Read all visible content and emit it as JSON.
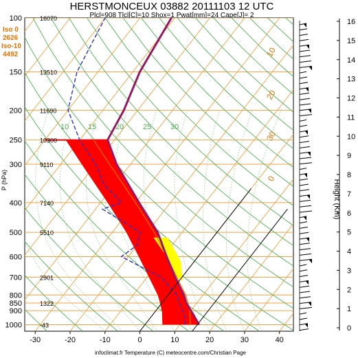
{
  "title": "HERSTMONCEUX 03882 20111103 12 UTC",
  "subtitle": "Plcl=908 Tlcl[C]=10 Shox=1 Pwat[mm]=24 Cape[J]= 2",
  "iso_labels": [
    "Iso 0",
    "2626",
    "Iso-10",
    "4492"
  ],
  "credit": "infoclimat.fr Temperature (C) meteocentre.com/Christian Page",
  "y_axis_label": "P (hPa)",
  "right_axis_label": "Height (Km)",
  "colors": {
    "isobar": "#f0a040",
    "dry_adiabat": "#4caf50",
    "temperature_line": "#3030c0",
    "profile_red": "#ff0000",
    "cape_fill": "#ffff00",
    "parcel": "#e87000",
    "iso_text": "#e87000",
    "mixing_ratio_text": "#e87000"
  },
  "chart_data": {
    "type": "line",
    "title": "HERSTMONCEUX 03882 20111103 12 UTC",
    "subtitle": "Plcl=908 Tlcl[C]=10 Shox=1 Pwat[mm]=24 Cape[J]= 2",
    "xlabel": "Temperature (C)",
    "ylabel": "P (hPa)",
    "xlim": [
      -35,
      45
    ],
    "pressure_levels": [
      1000,
      900,
      850,
      800,
      700,
      600,
      500,
      400,
      300,
      250,
      200,
      150,
      100
    ],
    "x_ticks": [
      -30,
      -20,
      -10,
      0,
      10,
      20,
      30,
      40
    ],
    "height_geopotential_labels": [
      {
        "p": 100,
        "text": "16070"
      },
      {
        "p": 150,
        "text": "13510"
      },
      {
        "p": 200,
        "text": "11690"
      },
      {
        "p": 250,
        "text": "10300"
      },
      {
        "p": 300,
        "text": "9110"
      },
      {
        "p": 400,
        "text": "7140"
      },
      {
        "p": 500,
        "text": "5510"
      },
      {
        "p": 700,
        "text": "2901"
      },
      {
        "p": 850,
        "text": "1322"
      },
      {
        "p": 1000,
        "text": "-43"
      }
    ],
    "right_axis_km": [
      0,
      1,
      2,
      3,
      4,
      5,
      6,
      7,
      8,
      9,
      10,
      11,
      12,
      13,
      14,
      15,
      16
    ],
    "theta_labels": [
      10,
      15,
      20,
      25,
      30
    ],
    "mixing_ratio_orange_labels": [
      10,
      20,
      30,
      0
    ],
    "series": [
      {
        "name": "Temperature",
        "points": [
          {
            "p": 1000,
            "t": 15.5
          },
          {
            "p": 925,
            "t": 11.5
          },
          {
            "p": 850,
            "t": 7.0
          },
          {
            "p": 800,
            "t": 4.5
          },
          {
            "p": 700,
            "t": -2.0
          },
          {
            "p": 600,
            "t": -9.0
          },
          {
            "p": 500,
            "t": -17.0
          },
          {
            "p": 400,
            "t": -29.0
          },
          {
            "p": 300,
            "t": -44.0
          },
          {
            "p": 250,
            "t": -52.0
          },
          {
            "p": 200,
            "t": -54.0
          },
          {
            "p": 150,
            "t": -58.0
          },
          {
            "p": 100,
            "t": -61.0
          }
        ]
      },
      {
        "name": "Dewpoint",
        "points": [
          {
            "p": 1000,
            "t": 11.5
          },
          {
            "p": 925,
            "t": 9.0
          },
          {
            "p": 850,
            "t": 5.0
          },
          {
            "p": 800,
            "t": 2.5
          },
          {
            "p": 700,
            "t": -6.0
          },
          {
            "p": 600,
            "t": -22.0
          },
          {
            "p": 550,
            "t": -20.0
          },
          {
            "p": 500,
            "t": -22.0
          },
          {
            "p": 420,
            "t": -38.0
          },
          {
            "p": 400,
            "t": -34.0
          },
          {
            "p": 350,
            "t": -43.0
          },
          {
            "p": 300,
            "t": -50.0
          },
          {
            "p": 250,
            "t": -60.0
          },
          {
            "p": 200,
            "t": -70.0
          },
          {
            "p": 150,
            "t": -76.0
          },
          {
            "p": 100,
            "t": -80.0
          }
        ]
      },
      {
        "name": "Parcel",
        "points": [
          {
            "p": 1000,
            "t": 13.0
          },
          {
            "p": 908,
            "t": 10.0
          },
          {
            "p": 850,
            "t": 7.5
          },
          {
            "p": 800,
            "t": 5.0
          },
          {
            "p": 700,
            "t": -1.5
          },
          {
            "p": 600,
            "t": -9.0
          },
          {
            "p": 500,
            "t": -18.0
          },
          {
            "p": 400,
            "t": -30.0
          },
          {
            "p": 300,
            "t": -46.0
          },
          {
            "p": 250,
            "t": -56.0
          }
        ]
      }
    ]
  }
}
